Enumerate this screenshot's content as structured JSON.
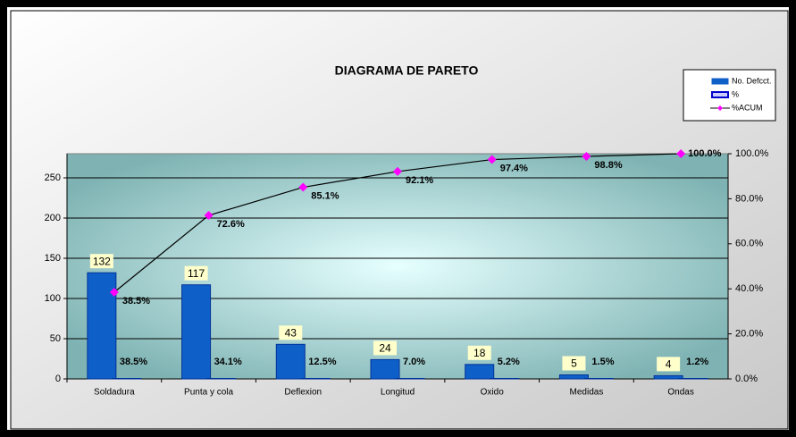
{
  "chart_data": {
    "type": "pareto",
    "title": "DIAGRAMA  DE   PARETO",
    "categories": [
      "Soldadura",
      "Punta y cola",
      "Deflexion",
      "Longitud",
      "Oxido",
      "Medidas",
      "Ondas"
    ],
    "series": [
      {
        "name": "No. Defcct.",
        "color": "#0f5fc8",
        "type": "bar",
        "values": [
          132,
          117,
          43,
          24,
          18,
          5,
          4
        ]
      },
      {
        "name": "%",
        "color": "#0f5fc8",
        "type": "bar",
        "values": [
          38.5,
          34.1,
          12.5,
          7.0,
          5.2,
          1.5,
          1.2
        ],
        "value_labels": [
          "38.5%",
          "34.1%",
          "12.5%",
          "7.0%",
          "5.2%",
          "1.5%",
          "1.2%"
        ]
      },
      {
        "name": "%ACUM",
        "color": "#ff00ff",
        "type": "line",
        "axis": "y2",
        "values": [
          38.5,
          72.6,
          85.1,
          92.1,
          97.4,
          98.8,
          100.0
        ],
        "value_labels": [
          "38.5%",
          "72.6%",
          "85.1%",
          "92.1%",
          "97.4%",
          "98.8%",
          "100.0%"
        ]
      }
    ],
    "ylim": [
      0,
      280
    ],
    "yticks": [
      0,
      50,
      100,
      150,
      200,
      250
    ],
    "y2lim": [
      0,
      100
    ],
    "y2ticks": [
      {
        "value": 0,
        "label": "0.0%"
      },
      {
        "value": 20,
        "label": "20.0%"
      },
      {
        "value": 40,
        "label": "40.0%"
      },
      {
        "value": 60,
        "label": "60.0%"
      },
      {
        "value": 80,
        "label": "80.0%"
      },
      {
        "value": 100,
        "label": "100.0%"
      }
    ],
    "grid": true
  }
}
